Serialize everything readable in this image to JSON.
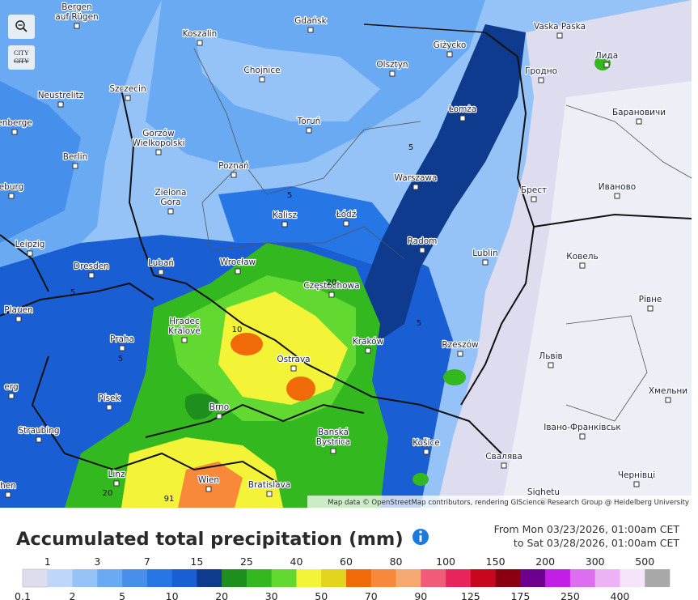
{
  "controls": {
    "city_toggle": [
      "CITY",
      "CITY"
    ]
  },
  "map": {
    "cities": [
      [
        "Bergen",
        "auf Rügen"
      ],
      [
        "Gdańsk"
      ],
      [
        "Koszalin"
      ],
      [
        "Vaska Paska"
      ],
      [
        "Лида"
      ],
      [
        "Giżycko"
      ],
      [
        "Olsztyn"
      ],
      [
        "Chojnice"
      ],
      [
        "Гродно"
      ],
      [
        "Neustrelitz"
      ],
      [
        "Szczecin"
      ],
      [
        "Łomża"
      ],
      [
        "Барановичи"
      ],
      [
        "enberge"
      ],
      [
        "Toruń"
      ],
      [
        "Gorzów",
        "Wielkopolski"
      ],
      [
        "Berlin"
      ],
      [
        "Poznań"
      ],
      [
        "Warszawa"
      ],
      [
        "Брест"
      ],
      [
        "Иваново"
      ],
      [
        "eburg"
      ],
      [
        "Zielona",
        "Góra"
      ],
      [
        "Kalisz"
      ],
      [
        "Łódź"
      ],
      [
        "Radom"
      ],
      [
        "Ковель"
      ],
      [
        "Leipzig"
      ],
      [
        "Dresden"
      ],
      [
        "Lubań"
      ],
      [
        "Wrocław"
      ],
      [
        "Lublin"
      ],
      [
        "Częstochowa"
      ],
      [
        "Рівне"
      ],
      [
        "Plauen"
      ],
      [
        "Hradec",
        "Králové"
      ],
      [
        "Praha"
      ],
      [
        "Kraków"
      ],
      [
        "Rzeszów"
      ],
      [
        "Львів"
      ],
      [
        "Ostrava"
      ],
      [
        "erg"
      ],
      [
        "Хмельни"
      ],
      [
        "Písek"
      ],
      [
        "Brno"
      ],
      [
        "Straubing"
      ],
      [
        "Banská",
        "Bystrica"
      ],
      [
        "Košice"
      ],
      [
        "Івано-Франківськ"
      ],
      [
        "Свалява"
      ],
      [
        "Linz"
      ],
      [
        "Wien"
      ],
      [
        "Bratislava"
      ],
      [
        "Чернівці"
      ],
      [
        "Sighetu"
      ],
      [
        "hen"
      ]
    ],
    "contour_labels": [
      "5",
      "5",
      "5",
      "5",
      "5",
      "20",
      "20",
      "10",
      "91"
    ],
    "attribution": "Map data © OpenStreetMap contributors, rendering GIScience Research Group @ Heidelberg University"
  },
  "title": "Accumulated total precipitation (mm)",
  "period": [
    "From Mon 03/23/2026, 01:00am CET",
    "to Sat 03/28/2026, 01:00am CET"
  ],
  "legend": {
    "thresholds": [
      0.1,
      1,
      2,
      3,
      5,
      7,
      10,
      15,
      20,
      25,
      30,
      40,
      50,
      60,
      70,
      80,
      90,
      100,
      125,
      150,
      175,
      200,
      250,
      300,
      400,
      500
    ],
    "colors": [
      "#dedcef",
      "#bcd7fb",
      "#95c3f7",
      "#6aaaf2",
      "#4690ec",
      "#2676e6",
      "#1a5ed4",
      "#0f3b8f",
      "#1e8e1e",
      "#33b81f",
      "#62d930",
      "#f3f337",
      "#e2d41c",
      "#f06a0a",
      "#f8893a",
      "#f5a86f",
      "#f05b7a",
      "#e9245a",
      "#c8071e",
      "#8a0012",
      "#6e0090",
      "#c21ee6",
      "#de6ef0",
      "#ecb2f5",
      "#f6e4fb",
      "#a8a8a8"
    ]
  }
}
